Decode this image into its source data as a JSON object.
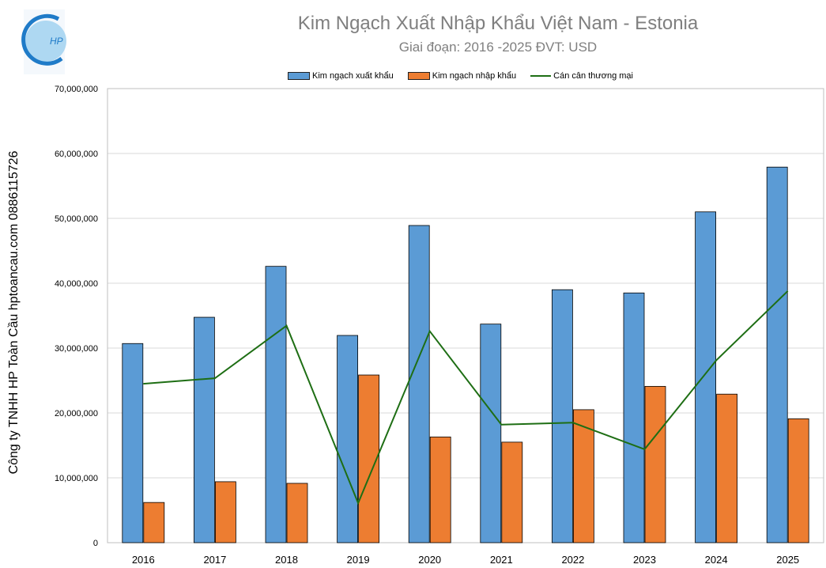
{
  "logo": {
    "text": "HP",
    "colors": [
      "#1f7bc8",
      "#9ad0f0"
    ]
  },
  "side_text": "Công ty TNHH HP Toàn Cầu hptoancau.com 0886115726",
  "chart_data": {
    "type": "bar+line",
    "title": "Kim Ngạch Xuất Nhập Khẩu Việt Nam - Estonia",
    "subtitle": "Giai đoạn: 2016 -2025  ĐVT: USD",
    "categories": [
      "2016",
      "2017",
      "2018",
      "2019",
      "2020",
      "2021",
      "2022",
      "2023",
      "2024",
      "2025"
    ],
    "ylim": [
      0,
      70000000
    ],
    "yticks": [
      "0",
      "10,000,000",
      "20,000,000",
      "30,000,000",
      "40,000,000",
      "50,000,000",
      "60,000,000",
      "70,000,000"
    ],
    "grid": true,
    "legend": "top",
    "series": [
      {
        "name": "Kim ngạch xuất khẩu",
        "type": "bar",
        "color": "#5b9bd5",
        "values": [
          30700000,
          34750000,
          42600000,
          31950000,
          48900000,
          33700000,
          39000000,
          38500000,
          51000000,
          57900000
        ]
      },
      {
        "name": "Kim ngạch nhập khẩu",
        "type": "bar",
        "color": "#ed7d31",
        "values": [
          6200000,
          9400000,
          9150000,
          25850000,
          16300000,
          15500000,
          20500000,
          24100000,
          22900000,
          19100000
        ]
      },
      {
        "name": "Cán cân thương mại",
        "type": "line",
        "color": "#1e6e14",
        "values": [
          24500000,
          25350000,
          33450000,
          6100000,
          32600000,
          18200000,
          18500000,
          14400000,
          28100000,
          38800000
        ]
      }
    ]
  }
}
